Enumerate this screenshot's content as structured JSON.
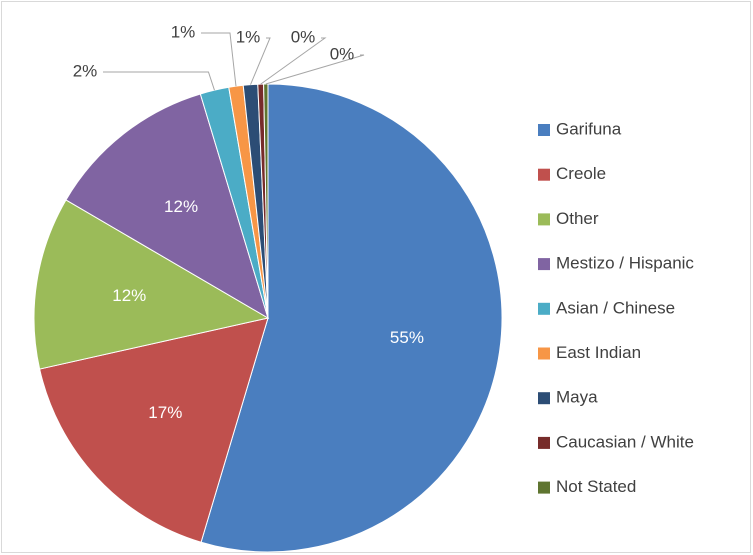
{
  "chart_data": {
    "type": "pie",
    "categories": [
      "Garifuna",
      "Creole",
      "Other",
      "Mestizo / Hispanic",
      "Asian / Chinese",
      "East Indian",
      "Maya",
      "Caucasian / White",
      "Not Stated"
    ],
    "values": [
      55,
      17,
      12,
      12,
      2,
      1,
      1,
      0.4,
      0.3
    ],
    "value_labels": [
      "55%",
      "17%",
      "12%",
      "12%",
      "2%",
      "1%",
      "1%",
      "0%",
      "0%"
    ],
    "colors": [
      "#4a7ebf",
      "#c0504d",
      "#9bbb59",
      "#8064a2",
      "#4bacc6",
      "#f79646",
      "#2c4d75",
      "#772c2a",
      "#5f7530"
    ],
    "legend": "right"
  }
}
